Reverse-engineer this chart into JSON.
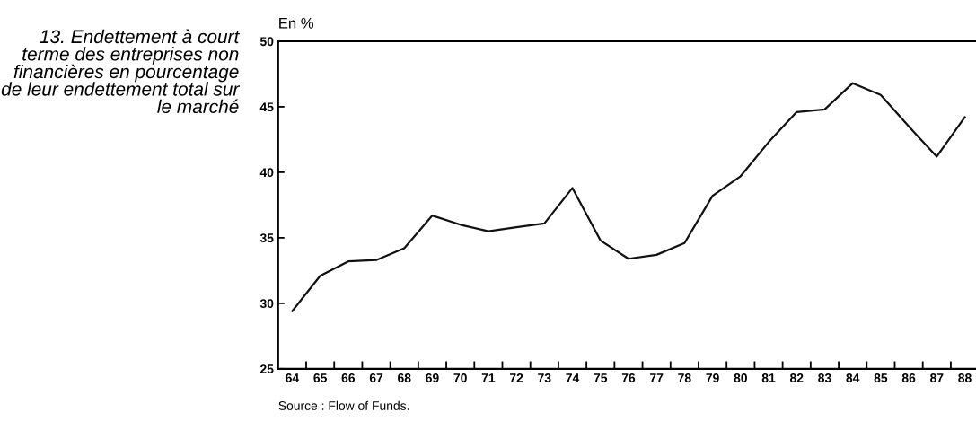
{
  "chart_data": {
    "type": "line",
    "title": "13. Endettement à court terme des entreprises non financières en pourcentage de leur endettement total sur le marché",
    "ylabel": "En %",
    "categories": [
      "64",
      "65",
      "66",
      "67",
      "68",
      "69",
      "70",
      "71",
      "72",
      "73",
      "74",
      "75",
      "76",
      "77",
      "78",
      "79",
      "80",
      "81",
      "82",
      "83",
      "84",
      "85",
      "86",
      "87",
      "88"
    ],
    "series": [
      {
        "color": "#111111",
        "values": [
          29.4,
          32.1,
          33.2,
          33.3,
          34.2,
          36.7,
          36.0,
          35.5,
          35.8,
          36.1,
          38.8,
          34.8,
          33.4,
          33.7,
          34.6,
          38.2,
          39.7,
          42.3,
          44.6,
          44.8,
          46.8,
          45.9,
          43.5,
          41.2,
          44.2
        ]
      }
    ],
    "ylim": [
      25,
      50
    ],
    "yticks": [
      25,
      30,
      35,
      40,
      45,
      50
    ],
    "grid": false,
    "legend": false,
    "marker": "none",
    "line_style": "solid",
    "annotations": [
      "Source : Flow of Funds."
    ]
  }
}
